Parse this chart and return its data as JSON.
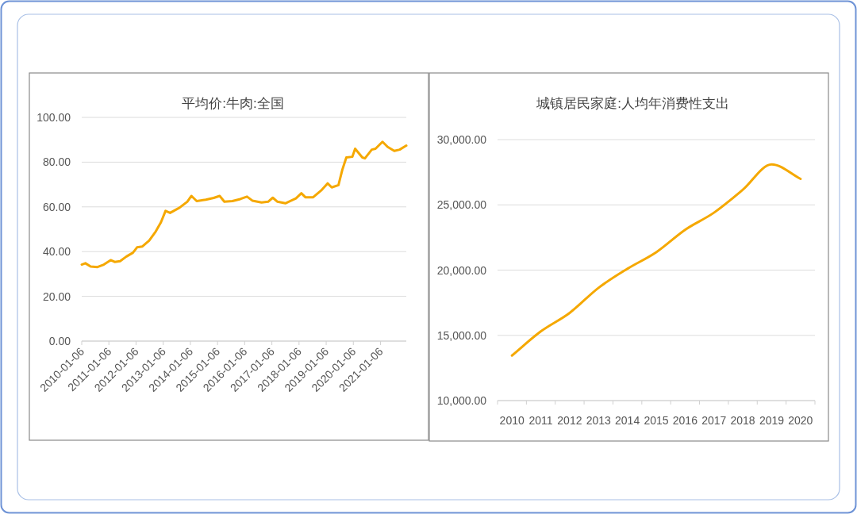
{
  "chart_data": [
    {
      "type": "line",
      "title": "平均价:牛肉:全国",
      "x": [
        "2010-01-06",
        "2010-02-24",
        "2010-05-06",
        "2010-08-06",
        "2010-10-30",
        "2011-01-30",
        "2011-03-25",
        "2011-06-06",
        "2011-08-30",
        "2011-11-25",
        "2012-01-20",
        "2012-04-01",
        "2012-06-30",
        "2012-09-27",
        "2012-12-06",
        "2013-02-06",
        "2013-04-08",
        "2013-08-12",
        "2013-11-25",
        "2014-01-20",
        "2014-04-01",
        "2014-08-01",
        "2014-11-16",
        "2015-02-04",
        "2015-04-08",
        "2015-07-24",
        "2015-11-08",
        "2016-02-06",
        "2016-04-18",
        "2016-08-20",
        "2016-11-16",
        "2017-01-18",
        "2017-03-22",
        "2017-07-06",
        "2017-11-25",
        "2018-02-06",
        "2018-04-01",
        "2018-07-15",
        "2018-10-30",
        "2019-01-25",
        "2019-03-22",
        "2019-06-20",
        "2019-08-12",
        "2019-10-04",
        "2019-12-24",
        "2020-01-30",
        "2020-05-06",
        "2020-06-10",
        "2020-09-10",
        "2020-10-30",
        "2021-02-01",
        "2021-04-12",
        "2021-07-10",
        "2021-09-20",
        "2021-12-18"
      ],
      "series": [
        {
          "color": "#f5a800",
          "values": [
            34.2,
            34.8,
            33.3,
            33.1,
            34.2,
            36.2,
            35.4,
            35.7,
            37.8,
            39.5,
            41.9,
            42.3,
            44.9,
            49.0,
            53.1,
            58.2,
            57.3,
            59.6,
            62.3,
            64.9,
            62.6,
            63.2,
            64.0,
            64.9,
            62.3,
            62.6,
            63.5,
            64.6,
            62.8,
            62.0,
            62.3,
            64.1,
            62.3,
            61.6,
            63.8,
            66.1,
            64.3,
            64.3,
            67.3,
            70.5,
            68.7,
            69.7,
            76.7,
            82.1,
            82.4,
            86.0,
            82.1,
            81.7,
            85.6,
            86.0,
            89.1,
            86.8,
            85.0,
            85.6,
            87.4
          ]
        }
      ],
      "xlim": [
        "2010-01-06",
        "2021-12-18"
      ],
      "xticks": [
        {
          "value": "2010-01-06",
          "label": "2010-01-06"
        },
        {
          "value": "2011-01-06",
          "label": "2011-01-06"
        },
        {
          "value": "2012-01-06",
          "label": "2012-01-06"
        },
        {
          "value": "2013-01-06",
          "label": "2013-01-06"
        },
        {
          "value": "2014-01-06",
          "label": "2014-01-06"
        },
        {
          "value": "2015-01-06",
          "label": "2015-01-06"
        },
        {
          "value": "2016-01-06",
          "label": "2016-01-06"
        },
        {
          "value": "2017-01-06",
          "label": "2017-01-06"
        },
        {
          "value": "2018-01-06",
          "label": "2018-01-06"
        },
        {
          "value": "2019-01-06",
          "label": "2019-01-06"
        },
        {
          "value": "2020-01-06",
          "label": "2020-01-06"
        },
        {
          "value": "2021-01-06",
          "label": "2021-01-06"
        }
      ],
      "ylim": [
        0,
        100
      ],
      "yticks": [
        {
          "value": 0,
          "label": "0.00"
        },
        {
          "value": 20,
          "label": "20.00"
        },
        {
          "value": 40,
          "label": "40.00"
        },
        {
          "value": 60,
          "label": "60.00"
        },
        {
          "value": 80,
          "label": "80.00"
        },
        {
          "value": 100,
          "label": "100.00"
        }
      ],
      "grid": "y",
      "marker": "none",
      "line_style": "solid"
    },
    {
      "type": "line",
      "title": "城镇居民家庭:人均年消费性支出",
      "categories": [
        "2010",
        "2011",
        "2012",
        "2013",
        "2014",
        "2015",
        "2016",
        "2017",
        "2018",
        "2019",
        "2020"
      ],
      "series": [
        {
          "color": "#f5a800",
          "values": [
            13450,
            15300,
            16720,
            18640,
            20100,
            21370,
            23090,
            24400,
            26160,
            28100,
            26990
          ]
        }
      ],
      "ylim": [
        10000,
        30000
      ],
      "yticks": [
        {
          "value": 10000,
          "label": "10,000.00"
        },
        {
          "value": 15000,
          "label": "15,000.00"
        },
        {
          "value": 20000,
          "label": "20,000.00"
        },
        {
          "value": 25000,
          "label": "25,000.00"
        },
        {
          "value": 30000,
          "label": "30,000.00"
        }
      ],
      "grid": "y",
      "marker": "none",
      "line_style": "solid"
    }
  ]
}
